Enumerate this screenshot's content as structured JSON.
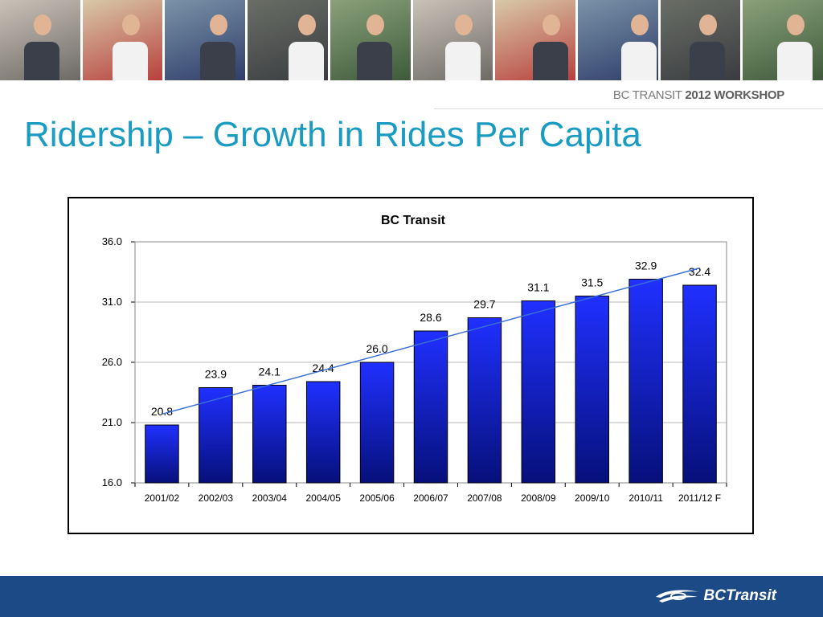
{
  "header": {
    "workshop_label_prefix": "BC TRANSIT ",
    "workshop_label_bold": "2012 WORKSHOP"
  },
  "slide": {
    "title": "Ridership – Growth in Rides Per Capita"
  },
  "footer": {
    "logo_text": "BCTransit"
  },
  "colors": {
    "title": "#1a9bc2",
    "bar_top": "#2030ff",
    "bar_bottom": "#06107a",
    "trend": "#3a6fd8",
    "footer": "#1c4a86"
  },
  "photo_strip": [
    "woman-phone-photo",
    "classroom-photo",
    "bus-boarding-photo",
    "driver-passenger-photo",
    "bus-stop-photo",
    "woman-phone-photo",
    "classroom-photo",
    "bus-boarding-photo",
    "driver-passenger-photo",
    "bus-stop-photo"
  ],
  "chart_data": {
    "type": "bar",
    "title": "BC Transit",
    "categories": [
      "2001/02",
      "2002/03",
      "2003/04",
      "2004/05",
      "2005/06",
      "2006/07",
      "2007/08",
      "2008/09",
      "2009/10",
      "2010/11",
      "2011/12 F"
    ],
    "values": [
      20.8,
      23.9,
      24.1,
      24.4,
      26.0,
      28.6,
      29.7,
      31.1,
      31.5,
      32.9,
      32.4
    ],
    "data_labels": [
      "20.8",
      "23.9",
      "24.1",
      "24.4",
      "26.0",
      "28.6",
      "29.7",
      "31.1",
      "31.5",
      "32.9",
      "32.4"
    ],
    "ylim": [
      16.0,
      36.0
    ],
    "yticks": [
      "16.0",
      "21.0",
      "26.0",
      "31.0",
      "36.0"
    ],
    "ytick_values": [
      16,
      21,
      26,
      31,
      36
    ],
    "grid": true,
    "trendline": "linear",
    "xlabel": "",
    "ylabel": ""
  }
}
